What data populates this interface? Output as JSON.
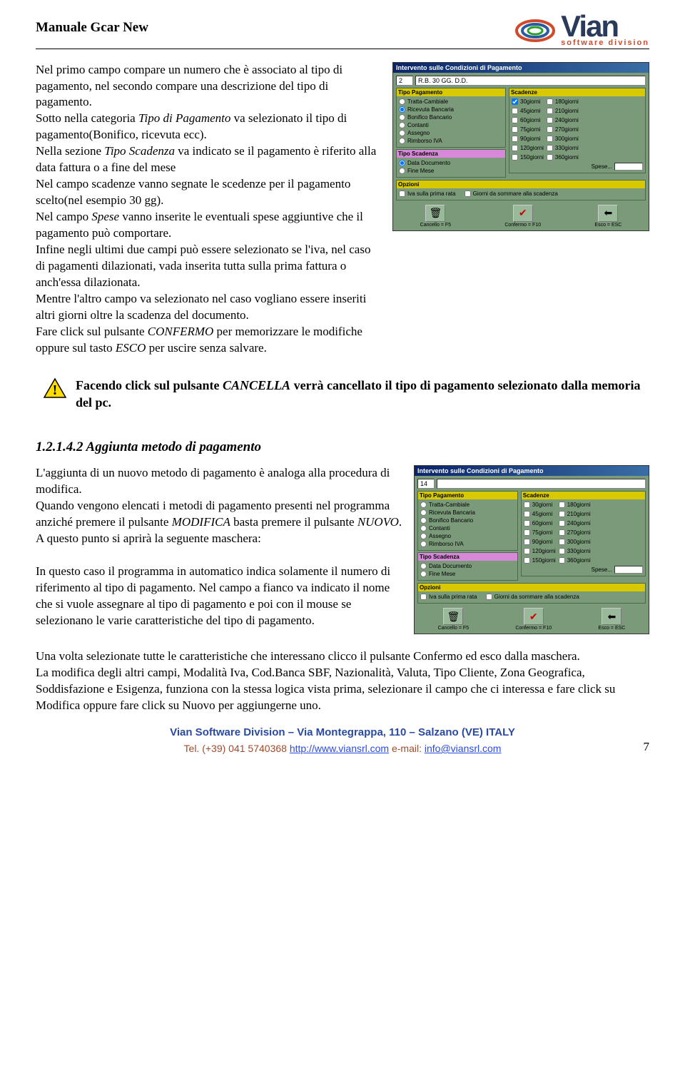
{
  "header": {
    "title": "Manuale Gcar New",
    "logo_main": "Vian",
    "logo_sub": "software division"
  },
  "paragraph1": {
    "p1a": "Nel primo campo compare un numero che è associato al tipo di pagamento, nel secondo compare una descrizione del tipo di pagamento.",
    "p1b": "Sotto nella categoria ",
    "p1b_i": "Tipo di Pagamento",
    "p1b2": " va selezionato il tipo di pagamento(Bonifico, ricevuta ecc).",
    "p1c": "Nella sezione ",
    "p1c_i": "Tipo Scadenza",
    "p1c2": " va indicato se il pagamento è riferito alla data fattura o a fine del mese",
    "p1d": "Nel campo scadenze vanno segnate le scedenze per il pagamento scelto(nel esempio 30 gg).",
    "p1e": "Nel campo ",
    "p1e_i": "Spese",
    "p1e2": " vanno inserite le eventuali spese aggiuntive che il pagamento può comportare.",
    "p1f": "Infine negli ultimi due campi può essere selezionato se l'iva, nel caso di pagamenti dilazionati, vada inserita tutta sulla prima fattura o anch'essa dilazionata.",
    "p1g": "Mentre l'altro campo va selezionato nel caso vogliano essere inseriti altri giorni oltre la scadenza del documento.",
    "p1h": "Fare click sul pulsante ",
    "p1h_i": "CONFERMO",
    "p1h2": " per memorizzare le modifiche oppure sul tasto ",
    "p1h_i2": "ESCO",
    "p1h3": " per uscire senza salvare."
  },
  "warning": {
    "w1": "Facendo click sul pulsante ",
    "w1_i": "CANCELLA",
    "w2": " verrà cancellato il tipo di pagamento selezionato dalla memoria del pc."
  },
  "section2": {
    "heading": "1.2.1.4.2 Aggiunta metodo di pagamento",
    "p1": "L'aggiunta di un nuovo metodo di pagamento è analoga alla procedura di modifica.",
    "p2a": "Quando vengono elencati i metodi di pagamento presenti nel programma anziché premere il pulsante ",
    "p2a_i": "MODIFICA",
    "p2b": " basta premere il pulsante ",
    "p2b_i": "NUOVO",
    "p2c": ".",
    "p3": "A questo punto si aprirà la seguente maschera:",
    "p4": "In questo caso il programma in automatico indica solamente il numero di riferimento al tipo di pagamento. Nel campo a fianco va indicato il nome che si vuole assegnare al tipo di pagamento e poi con il mouse se selezionano le varie caratteristiche del tipo di pagamento.",
    "p5a": "Una volta selezionate tutte le caratteristiche che interessano clicco il pulsante ",
    "p5a_i": "Confermo",
    "p5b": " ed esco dalla maschera.",
    "p6a": "La modifica degli altri campi, ",
    "p6a_i": "Modalità Iva, Cod.Banca SBF, Nazionalità, Valuta, Tipo Cliente, Zona Geografica, Soddisfazione e Esigenza",
    "p6b": ", funziona con la stessa logica vista prima, selezionare il campo che ci interessa e fare click su ",
    "p6b_i": "Modifica",
    "p6c": " oppure fare click su ",
    "p6c_i": "Nuovo",
    "p6d": " per aggiungerne uno."
  },
  "dialog1": {
    "title": "Intervento sulle Condizioni di Pagamento",
    "code": "2",
    "desc": "R.B. 30 GG. D.D.",
    "tipo_pag_title": "Tipo Pagamento",
    "tipo_scad_title": "Tipo Scadenza",
    "scadenze_title": "Scadenze",
    "opzioni_title": "Opzioni",
    "tipi": [
      "Tratta-Cambiale",
      "Ricevuta Bancaria",
      "Bonifico Bancario",
      "Contanti",
      "Assegno",
      "Rimborso IVA"
    ],
    "tipo_sel": 1,
    "scad_tipi": [
      "Data Documento",
      "Fine Mese"
    ],
    "scad_sel": 0,
    "scad_left": [
      "30giorni",
      "45giorni",
      "60giorni",
      "75giorni",
      "90giorni",
      "120giorni",
      "150giorni"
    ],
    "scad_right": [
      "180giorni",
      "210giorni",
      "240giorni",
      "270giorni",
      "300giorni",
      "330giorni",
      "360giorni"
    ],
    "scad_checked": 0,
    "spese_label": "Spese...",
    "opt1": "Iva sulla prima rata",
    "opt2": "Giorni da sommare alla scadenza",
    "btn_cancel": "Cancello = F5",
    "btn_confirm": "Confermo = F10",
    "btn_exit": "Esco = ESC"
  },
  "dialog2": {
    "title": "Intervento sulle Condizioni di Pagamento",
    "code": "14",
    "desc": "",
    "tipo_sel": -1,
    "scad_sel": -1,
    "scad_checked": -1
  },
  "footer": {
    "line1": "Vian Software Division – Via Montegrappa, 110 – Salzano (VE) ITALY",
    "tel_label": "Tel. ",
    "tel": "(+39) 041 5740368 ",
    "url": "http://www.viansrl.com",
    "email_label": "   e-mail: ",
    "email": "info@viansrl.com",
    "page": "7"
  },
  "colors": {
    "win_bg": "#7a9a7a",
    "yellow": "#d8c800",
    "pink": "#d888d8"
  }
}
